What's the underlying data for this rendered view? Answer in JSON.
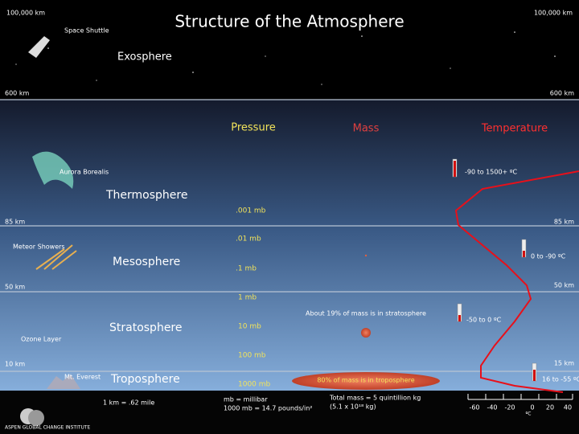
{
  "title": "Structure of the Atmosphere",
  "altitudes": {
    "top": {
      "left": "100,000 km",
      "right": "100,000 km"
    },
    "exosphere": {
      "left": "600 km",
      "right": "600 km"
    },
    "thermosphere": {
      "left": "85 km",
      "right": "85 km"
    },
    "mesosphere": {
      "left": "50 km",
      "right": "50 km"
    },
    "stratosphere": {
      "left": "10 km",
      "right": "15 km"
    }
  },
  "layers": [
    "Exosphere",
    "Thermosphere",
    "Mesosphere",
    "Stratosphere",
    "Troposphere"
  ],
  "headers": {
    "pressure": "Pressure",
    "mass": "Mass",
    "temperature": "Temperature"
  },
  "pressures": [
    ".001 mb",
    ".01 mb",
    ".1 mb",
    "1 mb",
    "10 mb",
    "100 mb",
    "1000 mb"
  ],
  "temperature_ranges": [
    "-90 to 1500+ ºC",
    "0 to -90 ºC",
    "-50 to 0 ºC",
    "16 to -55 ºC"
  ],
  "features": [
    "Space Shuttle",
    "Aurora Borealis",
    "Meteor Showers",
    "Ozone Layer",
    "Mt. Everest"
  ],
  "mass_notes": [
    "About 19% of mass is in stratosphere",
    "80% of mass is in troposphere"
  ],
  "footer": {
    "conversion": "1 km = .62 mile",
    "pressure_units": [
      "mb = millibar",
      "1000 mb = 14.7 pounds/in²"
    ],
    "total_mass": [
      "Total mass = 5 quintillion kg",
      "(5.1 x 10¹⁸ kg)"
    ]
  },
  "temperature_scale": {
    "ticks": [
      "-60",
      "-40",
      "-20",
      "0",
      "20",
      "40"
    ],
    "unit": "ºC"
  },
  "logo": "ASPEN GLOBAL CHANGE INSTITUTE"
}
